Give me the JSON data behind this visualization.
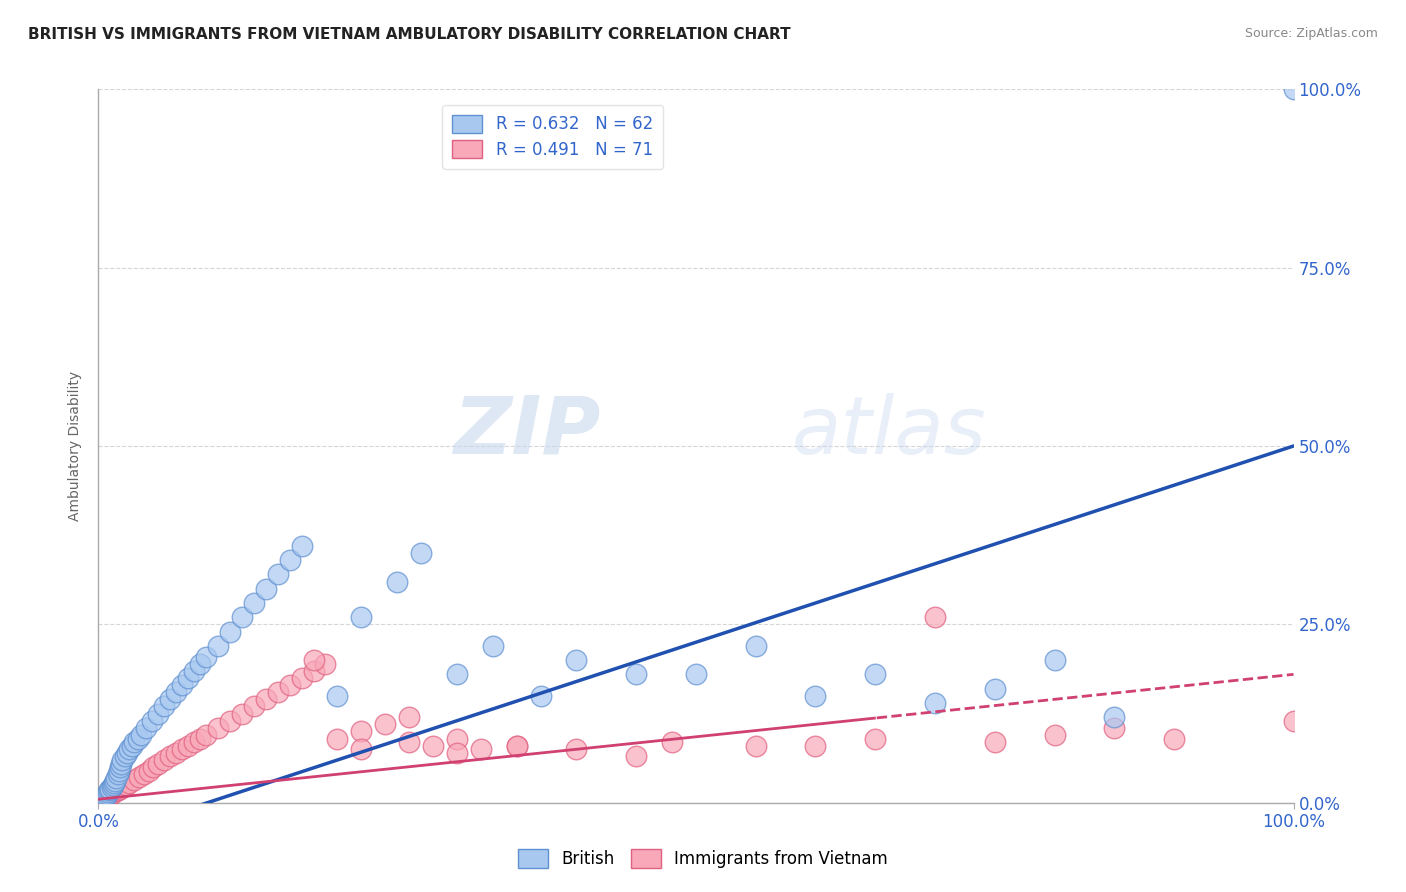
{
  "title": "BRITISH VS IMMIGRANTS FROM VIETNAM AMBULATORY DISABILITY CORRELATION CHART",
  "source": "Source: ZipAtlas.com",
  "ylabel": "Ambulatory Disability",
  "ytick_labels": [
    "0.0%",
    "25.0%",
    "50.0%",
    "75.0%",
    "100.0%"
  ],
  "ytick_positions": [
    0,
    25,
    50,
    75,
    100
  ],
  "british_color": "#A8C8F0",
  "british_edge": "#6090D0",
  "vietnam_color": "#F8A8B8",
  "vietnam_edge": "#E06080",
  "trendline_british_color": "#2050B0",
  "trendline_vietnam_color": "#D04070",
  "watermark_zip": "ZIP",
  "watermark_atlas": "atlas",
  "background_color": "#FFFFFF",
  "grid_color": "#CCCCCC",
  "title_color": "#222222",
  "source_color": "#888888",
  "axis_label_color": "#3366CC",
  "ylabel_color": "#666666",
  "british_slope": 0.55,
  "british_intercept": -5.0,
  "vietnam_slope": 0.175,
  "vietnam_intercept": 0.5,
  "british_dense_x": [
    0.3,
    0.5,
    0.6,
    0.7,
    0.8,
    0.9,
    1.0,
    1.1,
    1.2,
    1.3,
    1.4,
    1.5,
    1.6,
    1.7,
    1.8,
    1.9,
    2.0,
    2.2,
    2.4,
    2.6,
    2.8,
    3.0,
    3.3,
    3.6,
    4.0,
    4.5,
    5.0,
    5.5,
    6.0,
    6.5,
    7.0,
    7.5,
    8.0,
    8.5,
    9.0,
    10.0,
    11.0,
    12.0,
    13.0,
    14.0,
    15.0,
    16.0,
    17.0
  ],
  "british_dense_y": [
    0.5,
    0.8,
    1.0,
    1.2,
    1.5,
    1.8,
    2.0,
    2.2,
    2.5,
    2.8,
    3.0,
    3.5,
    4.0,
    4.5,
    5.0,
    5.5,
    6.0,
    6.5,
    7.0,
    7.5,
    8.0,
    8.5,
    9.0,
    9.5,
    10.5,
    11.5,
    12.5,
    13.5,
    14.5,
    15.5,
    16.5,
    17.5,
    18.5,
    19.5,
    20.5,
    22.0,
    24.0,
    26.0,
    28.0,
    30.0,
    32.0,
    34.0,
    36.0
  ],
  "british_sparse_x": [
    20.0,
    22.0,
    25.0,
    27.0,
    30.0,
    33.0,
    37.0,
    40.0,
    45.0,
    50.0,
    55.0,
    60.0,
    65.0,
    70.0,
    75.0,
    80.0,
    85.0,
    100.0
  ],
  "british_sparse_y": [
    15.0,
    26.0,
    31.0,
    35.0,
    18.0,
    22.0,
    15.0,
    20.0,
    18.0,
    18.0,
    22.0,
    15.0,
    18.0,
    14.0,
    16.0,
    20.0,
    12.0,
    100.0
  ],
  "vietnam_dense_x": [
    0.3,
    0.5,
    0.7,
    0.9,
    1.0,
    1.2,
    1.4,
    1.6,
    1.8,
    2.0,
    2.3,
    2.6,
    3.0,
    3.4,
    3.8,
    4.2,
    4.6,
    5.0,
    5.5,
    6.0,
    6.5,
    7.0,
    7.5,
    8.0,
    8.5,
    9.0,
    10.0,
    11.0,
    12.0,
    13.0,
    14.0,
    15.0,
    16.0,
    17.0,
    18.0,
    19.0,
    20.0,
    22.0,
    24.0,
    26.0,
    28.0,
    30.0,
    32.0,
    35.0
  ],
  "vietnam_dense_y": [
    0.4,
    0.6,
    0.8,
    1.0,
    1.2,
    1.4,
    1.6,
    1.8,
    2.0,
    2.2,
    2.5,
    2.8,
    3.2,
    3.6,
    4.0,
    4.5,
    5.0,
    5.5,
    6.0,
    6.5,
    7.0,
    7.5,
    8.0,
    8.5,
    9.0,
    9.5,
    10.5,
    11.5,
    12.5,
    13.5,
    14.5,
    15.5,
    16.5,
    17.5,
    18.5,
    19.5,
    9.0,
    10.0,
    11.0,
    12.0,
    8.0,
    9.0,
    7.5,
    8.0
  ],
  "vietnam_sparse_x": [
    18.0,
    22.0,
    26.0,
    30.0,
    35.0,
    40.0,
    45.0,
    48.0,
    55.0,
    60.0,
    65.0,
    70.0,
    75.0,
    80.0,
    85.0,
    90.0,
    100.0
  ],
  "vietnam_sparse_y": [
    20.0,
    7.5,
    8.5,
    7.0,
    8.0,
    7.5,
    6.5,
    8.5,
    8.0,
    8.0,
    9.0,
    26.0,
    8.5,
    9.5,
    10.5,
    9.0,
    11.5
  ]
}
